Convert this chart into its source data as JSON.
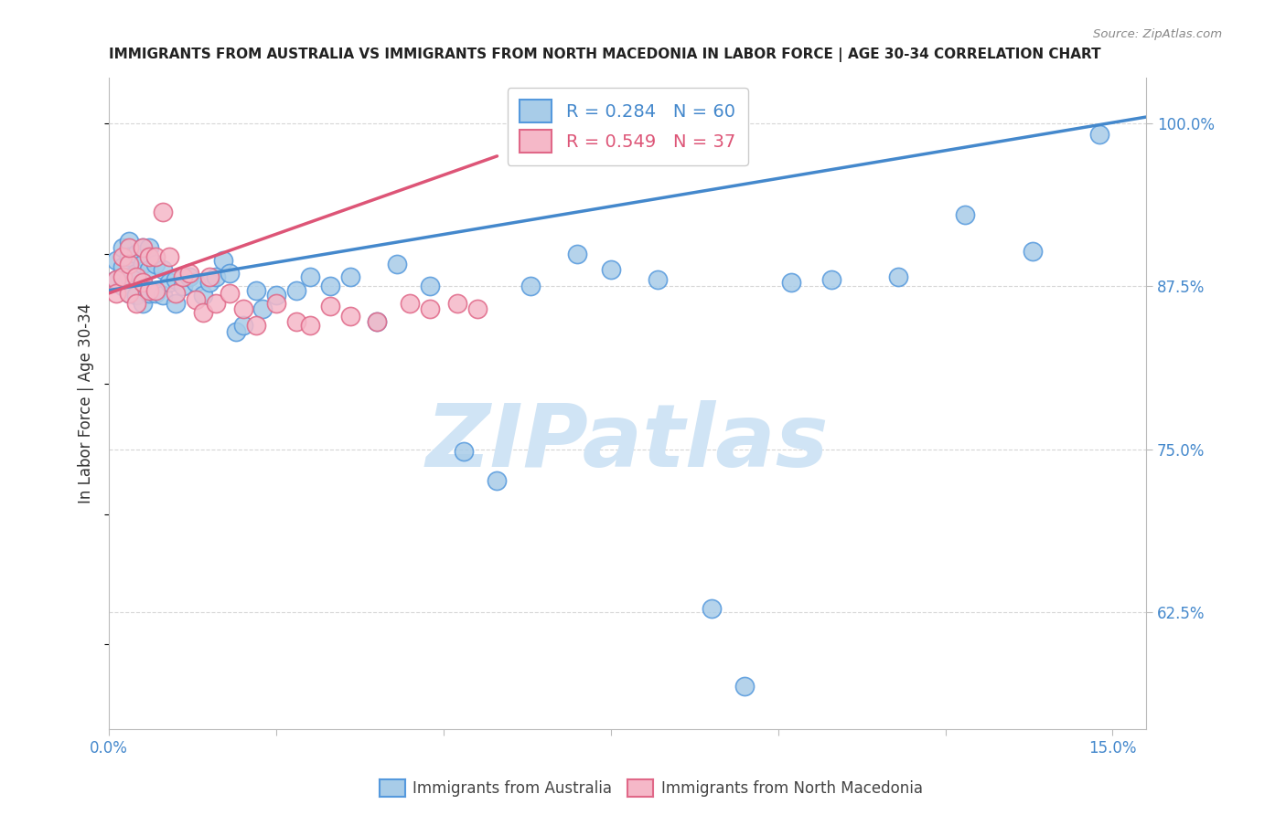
{
  "title": "IMMIGRANTS FROM AUSTRALIA VS IMMIGRANTS FROM NORTH MACEDONIA IN LABOR FORCE | AGE 30-34 CORRELATION CHART",
  "source": "Source: ZipAtlas.com",
  "ylabel": "In Labor Force | Age 30-34",
  "xlim": [
    0.0,
    0.155
  ],
  "ylim": [
    0.535,
    1.035
  ],
  "xtick_positions": [
    0.0,
    0.025,
    0.05,
    0.075,
    0.1,
    0.125,
    0.15
  ],
  "xticklabels": [
    "0.0%",
    "",
    "",
    "",
    "",
    "",
    "15.0%"
  ],
  "ytick_positions": [
    0.625,
    0.75,
    0.875,
    1.0
  ],
  "yticklabels": [
    "62.5%",
    "75.0%",
    "87.5%",
    "100.0%"
  ],
  "legend1_label": "R = 0.284   N = 60",
  "legend2_label": "R = 0.549   N = 37",
  "aus_face_color": "#a8cce8",
  "aus_edge_color": "#5599dd",
  "mac_face_color": "#f5b8c8",
  "mac_edge_color": "#e06888",
  "trend_aus_color": "#4488cc",
  "trend_mac_color": "#dd5577",
  "watermark_text": "ZIPatlas",
  "watermark_color": "#d0e4f5",
  "grid_color": "#cccccc",
  "spine_color": "#bbbbbb",
  "tick_color": "#4488cc",
  "title_color": "#222222",
  "label_color": "#333333",
  "source_color": "#888888",
  "bottom_label_color": "#444444",
  "aus_x": [
    0.001,
    0.001,
    0.002,
    0.002,
    0.002,
    0.003,
    0.003,
    0.003,
    0.003,
    0.004,
    0.004,
    0.004,
    0.005,
    0.005,
    0.005,
    0.005,
    0.006,
    0.006,
    0.006,
    0.007,
    0.007,
    0.008,
    0.008,
    0.009,
    0.01,
    0.01,
    0.011,
    0.012,
    0.013,
    0.014,
    0.015,
    0.016,
    0.017,
    0.018,
    0.019,
    0.02,
    0.022,
    0.023,
    0.025,
    0.028,
    0.03,
    0.033,
    0.036,
    0.04,
    0.043,
    0.048,
    0.053,
    0.058,
    0.063,
    0.07,
    0.075,
    0.082,
    0.09,
    0.095,
    0.102,
    0.108,
    0.118,
    0.128,
    0.138,
    0.148
  ],
  "aus_y": [
    0.895,
    0.88,
    0.905,
    0.89,
    0.875,
    0.91,
    0.898,
    0.882,
    0.87,
    0.9,
    0.885,
    0.868,
    0.905,
    0.892,
    0.878,
    0.862,
    0.905,
    0.888,
    0.87,
    0.892,
    0.87,
    0.888,
    0.868,
    0.878,
    0.88,
    0.862,
    0.875,
    0.882,
    0.878,
    0.868,
    0.878,
    0.882,
    0.895,
    0.885,
    0.84,
    0.845,
    0.872,
    0.858,
    0.868,
    0.872,
    0.882,
    0.875,
    0.882,
    0.848,
    0.892,
    0.875,
    0.748,
    0.726,
    0.875,
    0.9,
    0.888,
    0.88,
    0.628,
    0.568,
    0.878,
    0.88,
    0.882,
    0.93,
    0.902,
    0.992
  ],
  "mac_x": [
    0.001,
    0.001,
    0.002,
    0.002,
    0.003,
    0.003,
    0.003,
    0.004,
    0.004,
    0.005,
    0.005,
    0.006,
    0.006,
    0.007,
    0.007,
    0.008,
    0.009,
    0.01,
    0.011,
    0.012,
    0.013,
    0.014,
    0.015,
    0.016,
    0.018,
    0.02,
    0.022,
    0.025,
    0.028,
    0.03,
    0.033,
    0.036,
    0.04,
    0.045,
    0.048,
    0.052,
    0.055
  ],
  "mac_y": [
    0.88,
    0.87,
    0.898,
    0.882,
    0.892,
    0.87,
    0.905,
    0.882,
    0.862,
    0.905,
    0.878,
    0.898,
    0.872,
    0.898,
    0.872,
    0.932,
    0.898,
    0.87,
    0.882,
    0.885,
    0.865,
    0.855,
    0.882,
    0.862,
    0.87,
    0.858,
    0.845,
    0.862,
    0.848,
    0.845,
    0.86,
    0.852,
    0.848,
    0.862,
    0.858,
    0.862,
    0.858
  ]
}
